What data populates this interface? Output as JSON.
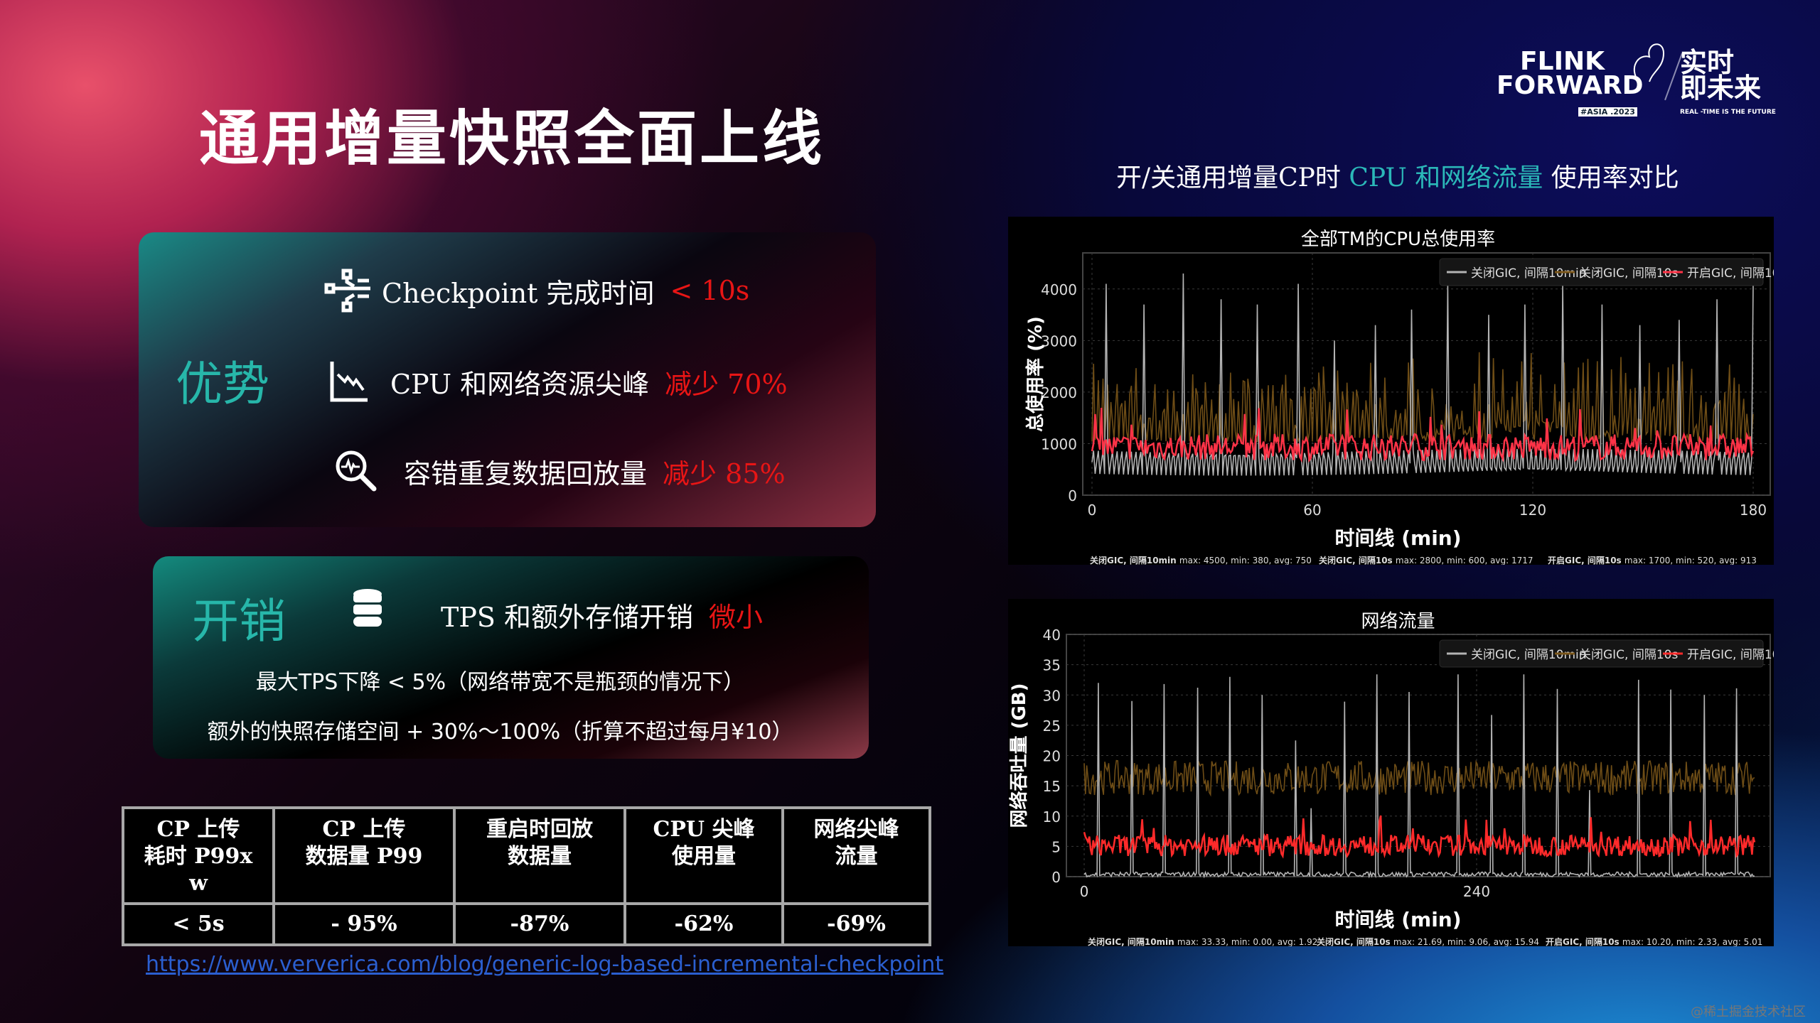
{
  "title": "通用增量快照全面上线",
  "logo": {
    "brand_line1": "FLINK",
    "brand_line2": "FORWARD",
    "tag": "#ASIA .2023",
    "slogan_cn_1": "实时",
    "slogan_cn_2": "即未来",
    "slogan_en": "REAL -TIME IS THE FUTURE"
  },
  "advantages": {
    "label": "优势",
    "items": [
      {
        "icon": "checkpoint-flow-icon",
        "text": "Checkpoint 完成时间",
        "highlight": "< 10s"
      },
      {
        "icon": "declining-chart-icon",
        "text": "CPU 和网络资源尖峰",
        "highlight": "减少 70%"
      },
      {
        "icon": "search-waveform-icon",
        "text": "容错重复数据回放量",
        "highlight": "减少 85%"
      }
    ]
  },
  "overhead": {
    "label": "开销",
    "icon": "database-icon",
    "text": "TPS 和额外存储开销",
    "highlight": "微小",
    "notes": [
      "最大TPS下降 < 5%（网络带宽不是瓶颈的情况下）",
      "额外的快照存储空间 + 30%～100%（折算不超过每月¥10）"
    ]
  },
  "table": {
    "headers": [
      "CP 上传\n耗时 P99x\nw",
      "CP 上传\n数据量 P99",
      "重启时回放\n数据量",
      "CPU 尖峰\n使用量",
      "网络尖峰\n流量"
    ],
    "values": [
      "< 5s",
      "- 95%",
      "-87%",
      "-62%",
      "-69%"
    ]
  },
  "link": "https://www.ververica.com/blog/generic-log-based-incremental-checkpoint",
  "right_subtitle": {
    "pre": "开/关通用增量CP时 ",
    "highlight": "CPU 和网络流量",
    "post": " 使用率对比"
  },
  "colors": {
    "teal": "#27b7aa",
    "red": "#e81515",
    "series_gray": "#b4b4b4",
    "series_brown": "#7a5518",
    "series_red": "#ff3347"
  },
  "watermark": "@稀土掘金技术社区",
  "chart_data": [
    {
      "type": "line",
      "title": "全部TM的CPU总使用率",
      "xlabel": "时间线 (min)",
      "ylabel": "总使用率 (%)",
      "xlim": [
        0,
        180
      ],
      "ylim": [
        0,
        4700
      ],
      "xticks": [
        0,
        60,
        120,
        180
      ],
      "yticks": [
        0,
        1000,
        2000,
        3000,
        4000
      ],
      "grid": true,
      "legend": "top-right",
      "series": [
        {
          "name": "关闭GIC, 间隔10min",
          "color": "#b4b4b4",
          "stats_label": "关闭GIC, 间隔10min",
          "stats": "max: 4500, min: 380, avg: 750",
          "min": 380,
          "avg": 750,
          "max": 4500,
          "spikes": [
            [
              4,
              4100
            ],
            [
              14,
              3700
            ],
            [
              25,
              4300
            ],
            [
              35,
              3800
            ],
            [
              45,
              3700
            ],
            [
              56,
              4100
            ],
            [
              66,
              3000
            ],
            [
              77,
              3300
            ],
            [
              87,
              3600
            ],
            [
              97,
              4100
            ],
            [
              108,
              3500
            ],
            [
              118,
              3700
            ],
            [
              128,
              4100
            ],
            [
              139,
              3700
            ],
            [
              149,
              3300
            ],
            [
              160,
              3400
            ],
            [
              170,
              3800
            ],
            [
              180,
              4100
            ]
          ]
        },
        {
          "name": "关闭GIC, 间隔10s",
          "color": "#7a5518",
          "stats_label": "关闭GIC, 间隔10s",
          "stats": "max: 2800, min: 600, avg: 1717",
          "min": 600,
          "avg": 1717,
          "max": 2800
        },
        {
          "name": "开启GIC, 间隔10s",
          "color": "#ff3347",
          "stats_label": "开启GIC, 间隔10s",
          "stats": "max: 1700, min: 520, avg: 913",
          "min": 520,
          "avg": 913,
          "max": 1700
        }
      ]
    },
    {
      "type": "line",
      "title": "网络流量",
      "xlabel": "时间线 (min)",
      "ylabel": "网络吞吐量 (GB)",
      "xlim": [
        0,
        410
      ],
      "ylim": [
        0,
        40
      ],
      "xticks": [
        0,
        240
      ],
      "yticks": [
        0,
        5,
        10,
        15,
        20,
        25,
        30,
        35,
        40
      ],
      "grid": true,
      "legend": "top-right",
      "series": [
        {
          "name": "关闭GIC, 间隔10min",
          "color": "#b4b4b4",
          "stats_label": "关闭GIC, 间隔10min",
          "stats": "max: 33.33, min: 0.00, avg: 1.92",
          "min": 0,
          "avg": 1.92,
          "max": 33.33,
          "spikes": [
            [
              9,
              32
            ],
            [
              29,
              29
            ],
            [
              49,
              31.8
            ],
            [
              69,
              31.2
            ],
            [
              89,
              33
            ],
            [
              109,
              30
            ],
            [
              129,
              22.5
            ],
            [
              139,
              11.3
            ],
            [
              159,
              28.9
            ],
            [
              179,
              33.4
            ],
            [
              199,
              30.5
            ],
            [
              229,
              33.4
            ],
            [
              249,
              26.7
            ],
            [
              269,
              33.4
            ],
            [
              289,
              31
            ],
            [
              309,
              14.3
            ],
            [
              339,
              32.5
            ],
            [
              359,
              30.9
            ],
            [
              379,
              30
            ],
            [
              399,
              31.1
            ]
          ]
        },
        {
          "name": "关闭GIC, 间隔10s",
          "color": "#7a5518",
          "stats_label": "关闭GIC, 间隔10s",
          "stats": "max: 21.69, min: 9.06, avg: 15.94",
          "min": 9.06,
          "avg": 15.94,
          "max": 21.69
        },
        {
          "name": "开启GIC, 间隔10s",
          "color": "#ff2a2a",
          "stats_label": "开启GIC, 间隔10s",
          "stats": "max: 10.20, min: 2.33, avg: 5.01",
          "min": 2.33,
          "avg": 5.01,
          "max": 10.2
        }
      ]
    }
  ]
}
